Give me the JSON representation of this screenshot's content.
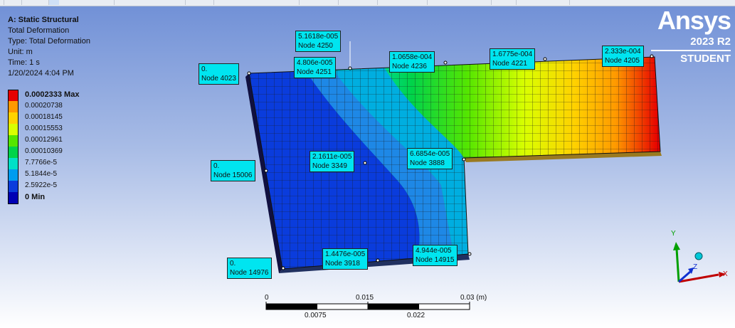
{
  "info": {
    "title": "A: Static Structural",
    "result": "Total Deformation",
    "type": "Type: Total Deformation",
    "unit": "Unit: m",
    "time": "Time: 1 s",
    "date": "1/20/2024 4:04 PM"
  },
  "legend": [
    {
      "label": "0.0002333 Max",
      "color": "#e60000",
      "bold": true
    },
    {
      "label": "0.00020738",
      "color": "#ff9900"
    },
    {
      "label": "0.00018145",
      "color": "#ffd200"
    },
    {
      "label": "0.00015553",
      "color": "#d9ff00"
    },
    {
      "label": "0.00012961",
      "color": "#55e600"
    },
    {
      "label": "0.00010369",
      "color": "#00d34a"
    },
    {
      "label": "7.7766e-5",
      "color": "#00e0c8"
    },
    {
      "label": "5.1844e-5",
      "color": "#009cf0"
    },
    {
      "label": "2.5922e-5",
      "color": "#0a3cdc"
    },
    {
      "label": "0 Min",
      "color": "#0000b4",
      "bold": true
    }
  ],
  "brand": {
    "name": "Ansys",
    "version": "2023 R2",
    "edition": "STUDENT"
  },
  "probes": [
    {
      "value": "5.1618e-005",
      "node": "Node 4250"
    },
    {
      "value": "0.",
      "node": "Node 4023"
    },
    {
      "value": "4.806e-005",
      "node": "Node 4251"
    },
    {
      "value": "1.0658e-004",
      "node": "Node 4236"
    },
    {
      "value": "1.6775e-004",
      "node": "Node 4221"
    },
    {
      "value": "2.333e-004",
      "node": "Node 4205"
    },
    {
      "value": "2.1611e-005",
      "node": "Node 3349"
    },
    {
      "value": "6.6854e-005",
      "node": "Node 3888"
    },
    {
      "value": "0.",
      "node": "Node 15006"
    },
    {
      "value": "0.",
      "node": "Node 14976"
    },
    {
      "value": "1.4476e-005",
      "node": "Node 3918"
    },
    {
      "value": "4.944e-005",
      "node": "Node 14915"
    }
  ],
  "scale_bar": {
    "top_labels": [
      "0",
      "0.015",
      "0.03 (m)"
    ],
    "bottom_labels": [
      "0.0075",
      "0.022"
    ]
  },
  "triad": {
    "x": "X",
    "y": "Y",
    "z": "Z"
  }
}
